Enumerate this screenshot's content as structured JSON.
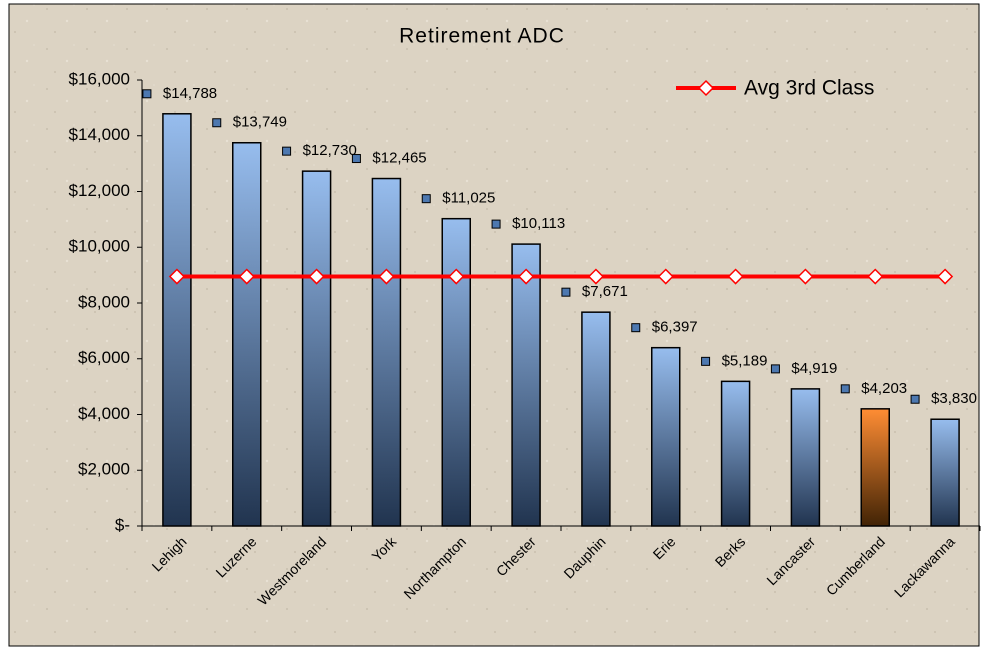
{
  "chart_data": {
    "type": "bar",
    "title": "Retirement ADC",
    "categories": [
      "Lehigh",
      "Luzerne",
      "Westmoreland",
      "York",
      "Northampton",
      "Chester",
      "Dauphin",
      "Erie",
      "Berks",
      "Lancaster",
      "Cumberland",
      "Lackawanna"
    ],
    "series": [
      {
        "type": "bar",
        "values": [
          14788,
          13749,
          12730,
          12465,
          11025,
          10113,
          7671,
          6397,
          5189,
          4919,
          4203,
          3830
        ],
        "value_labels": [
          "$14,788",
          "$13,749",
          "$12,730",
          "$12,465",
          "$11,025",
          "$10,113",
          "$7,671",
          "$6,397",
          "$5,189",
          "$4,919",
          "$4,203",
          "$3,830"
        ],
        "colors": [
          "#6f95c6",
          "#6f95c6",
          "#6f95c6",
          "#6f95c6",
          "#6f95c6",
          "#6f95c6",
          "#6f95c6",
          "#6f95c6",
          "#6f95c6",
          "#6f95c6",
          "#d8650c",
          "#6f95c6"
        ]
      },
      {
        "type": "line",
        "name": "Avg 3rd Class",
        "color": "#ff0000",
        "values": [
          8950,
          8950,
          8950,
          8950,
          8950,
          8950,
          8950,
          8950,
          8950,
          8950,
          8950,
          8950
        ]
      }
    ],
    "ylim": [
      0,
      16000
    ],
    "yticks": [
      {
        "value": 0,
        "label": "$-"
      },
      {
        "value": 2000,
        "label": "$2,000"
      },
      {
        "value": 4000,
        "label": "$4,000"
      },
      {
        "value": 6000,
        "label": "$6,000"
      },
      {
        "value": 8000,
        "label": "$8,000"
      },
      {
        "value": 10000,
        "label": "$10,000"
      },
      {
        "value": 12000,
        "label": "$12,000"
      },
      {
        "value": 14000,
        "label": "$14,000"
      },
      {
        "value": 16000,
        "label": "$16,000"
      }
    ],
    "legend": "top-right"
  }
}
